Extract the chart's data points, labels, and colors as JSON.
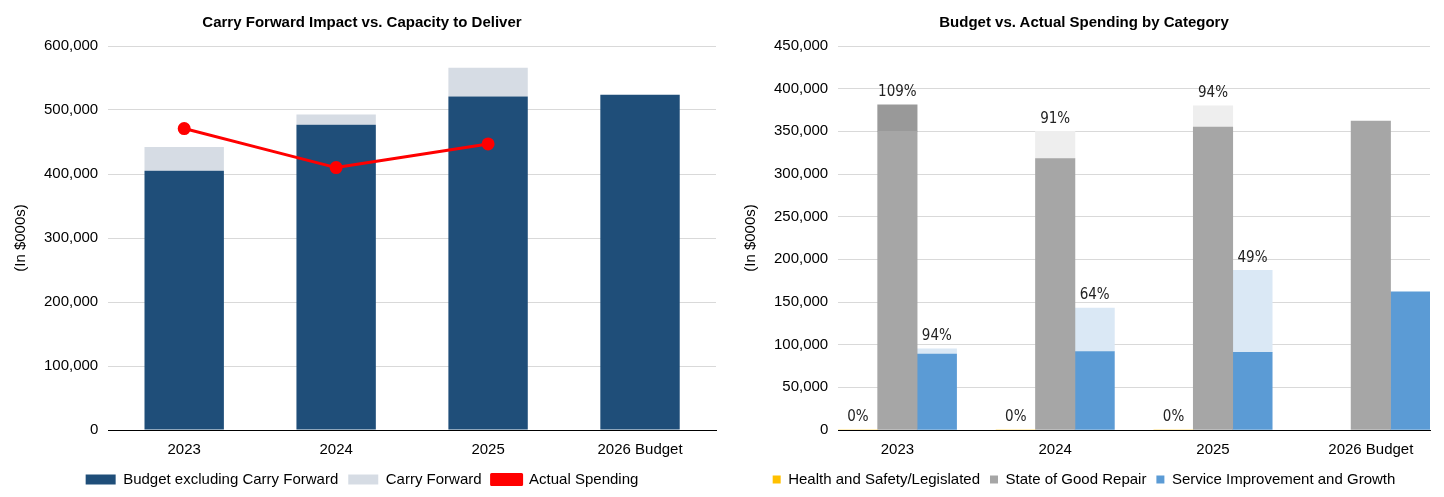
{
  "chart_data": [
    {
      "type": "bar",
      "title": "Carry Forward Impact vs. Capacity to Deliver",
      "ylabel": "(In $000s)",
      "categories": [
        "2023",
        "2024",
        "2025",
        "2026 Budget"
      ],
      "stacked": true,
      "grid": "y",
      "legend": "bottom",
      "marker": "circle",
      "ylim": [
        0,
        600000
      ],
      "yticks": [
        {
          "value": 0,
          "label": "0"
        },
        {
          "value": 100000,
          "label": "100,000"
        },
        {
          "value": 200000,
          "label": "200,000"
        },
        {
          "value": 300000,
          "label": "300,000"
        },
        {
          "value": 400000,
          "label": "400,000"
        },
        {
          "value": 500000,
          "label": "500,000"
        },
        {
          "value": 600000,
          "label": "600,000"
        }
      ],
      "series": [
        {
          "name": "Budget excluding Carry Forward",
          "color": "#1f4e79",
          "values": [
            405000,
            477000,
            521000,
            524000
          ]
        },
        {
          "name": "Carry Forward",
          "color": "#d6dce4",
          "values": [
            37000,
            16000,
            45000,
            null
          ]
        },
        {
          "name": "Actual Spending",
          "type": "line",
          "color": "#ff0000",
          "values": [
            471000,
            410000,
            447000,
            null
          ]
        }
      ]
    },
    {
      "type": "bar",
      "title": "Budget vs. Actual Spending by Category",
      "ylabel": "(In $000s)",
      "categories": [
        null,
        "2023",
        null,
        null,
        null,
        "2024",
        null,
        null,
        null,
        "2025",
        null,
        null,
        null,
        "2026 Budget",
        null
      ],
      "stacked": true,
      "grid": "y",
      "legend": "bottom",
      "ylim": [
        0,
        450000
      ],
      "yticks": [
        {
          "value": 0,
          "label": "0"
        },
        {
          "value": 50000,
          "label": "50,000"
        },
        {
          "value": 100000,
          "label": "100,000"
        },
        {
          "value": 150000,
          "label": "150,000"
        },
        {
          "value": 200000,
          "label": "200,000"
        },
        {
          "value": 250000,
          "label": "250,000"
        },
        {
          "value": 300000,
          "label": "300,000"
        },
        {
          "value": 350000,
          "label": "350,000"
        },
        {
          "value": 400000,
          "label": "400,000"
        },
        {
          "value": 450000,
          "label": "450,000"
        }
      ],
      "series": [
        {
          "name": "Health and Safety/Legislated",
          "color": "#ffc000",
          "values": [
            0,
            null,
            null,
            null,
            0,
            null,
            null,
            null,
            0,
            null,
            null,
            null,
            null,
            null,
            null
          ]
        },
        {
          "name": "State of Good Repair",
          "color": "#a6a6a6",
          "values": [
            null,
            350000,
            null,
            null,
            null,
            318000,
            null,
            null,
            null,
            355000,
            null,
            null,
            null,
            362000,
            null
          ]
        },
        {
          "color": "#999999",
          "values": [
            null,
            31000,
            null,
            null,
            null,
            null,
            null,
            null,
            null,
            null,
            null,
            null,
            null,
            null,
            null
          ]
        },
        {
          "color": "#eeeeee",
          "values": [
            null,
            null,
            null,
            null,
            null,
            32000,
            null,
            null,
            null,
            25000,
            null,
            null,
            null,
            null,
            null
          ]
        },
        {
          "name": "Service Improvement and Growth",
          "color": "#5b9bd5",
          "values": [
            null,
            null,
            89000,
            null,
            null,
            null,
            92000,
            null,
            null,
            null,
            91000,
            null,
            null,
            null,
            162000
          ]
        },
        {
          "color": "#dae8f5",
          "values": [
            null,
            null,
            6000,
            null,
            null,
            null,
            51000,
            null,
            null,
            null,
            96000,
            null,
            null,
            null,
            null
          ]
        }
      ],
      "annotations": [
        {
          "text": "0%",
          "y": 0
        },
        {
          "text": "109%",
          "y": 381000
        },
        {
          "text": "94%",
          "y": 95000
        },
        {
          "text": "0%",
          "y": 0
        },
        {
          "text": "91%",
          "y": 350000
        },
        {
          "text": "64%",
          "y": 143000
        },
        {
          "text": "0%",
          "y": 0
        },
        {
          "text": "94%",
          "y": 380000
        },
        {
          "text": "49%",
          "y": 187000
        }
      ]
    }
  ]
}
